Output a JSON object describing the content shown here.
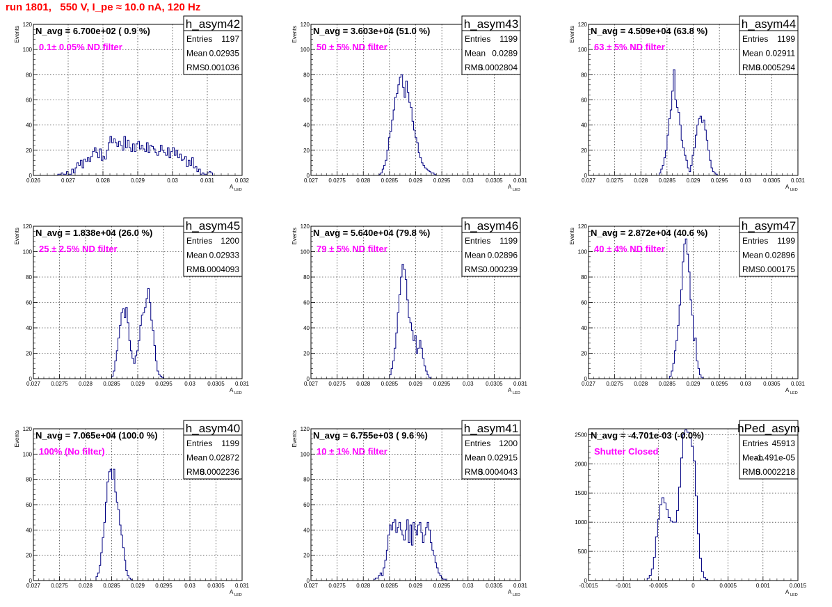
{
  "page": {
    "title": "run 1801,   550 V, I_pe ≈ 10.0 nA, 120 Hz"
  },
  "style": {
    "hist_color": "#000080",
    "annotation_color": "#ff00ff",
    "title_color": "#ff0000",
    "grid": "dotted"
  },
  "stats_labels": {
    "entries": "Entries",
    "mean": "Mean",
    "rms": "RMS"
  },
  "chart_data": [
    {
      "type": "histogram",
      "name": "h_asym42",
      "navg": "N_avg = 6.700e+02 ( 0.9 %)",
      "label": "0.1± 0.05% ND filter",
      "stats": {
        "entries": "1197",
        "mean": "0.02935",
        "rms": "0.001036"
      },
      "xlabel": "A",
      "xlabel_sub": "LED",
      "ylabel": "Events",
      "xlim": [
        0.026,
        0.032
      ],
      "ylim": [
        0,
        120
      ],
      "xticks": [
        0.026,
        0.027,
        0.028,
        0.029,
        0.03,
        0.031,
        0.032
      ],
      "xticklabels": [
        "0.026",
        "0.027",
        "0.028",
        "0.029",
        "0.03",
        "0.031",
        "0.032"
      ],
      "yticks": [
        0,
        20,
        40,
        60,
        80,
        100,
        120
      ],
      "bins": {
        "start": 0.0267,
        "width": 5e-05,
        "counts": [
          1,
          1,
          2,
          1,
          1,
          3,
          1,
          1,
          5,
          2,
          6,
          10,
          8,
          12,
          6,
          13,
          11,
          14,
          11,
          15,
          19,
          22,
          18,
          14,
          21,
          12,
          15,
          13,
          20,
          26,
          31,
          26,
          29,
          26,
          23,
          27,
          24,
          20,
          31,
          22,
          28,
          22,
          19,
          25,
          19,
          25,
          27,
          21,
          24,
          21,
          19,
          26,
          18,
          24,
          23,
          21,
          18,
          16,
          19,
          24,
          20,
          18,
          16,
          22,
          14,
          19,
          22,
          16,
          20,
          14,
          17,
          12,
          13,
          15,
          7,
          12,
          8,
          14,
          6,
          7,
          3,
          5,
          1,
          2,
          1,
          1,
          2,
          3,
          2
        ]
      }
    },
    {
      "type": "histogram",
      "name": "h_asym43",
      "navg": "N_avg = 3.603e+04 (51.0 %)",
      "label": "50 ± 5% ND filter",
      "stats": {
        "entries": "1199",
        "mean": "0.0289",
        "rms": "0.0002804"
      },
      "xlabel": "A",
      "xlabel_sub": "LED",
      "ylabel": "Events",
      "xlim": [
        0.027,
        0.031
      ],
      "ylim": [
        0,
        120
      ],
      "xticks": [
        0.027,
        0.0275,
        0.028,
        0.0285,
        0.029,
        0.0295,
        0.03,
        0.0305,
        0.031
      ],
      "xticklabels": [
        "0.027",
        "0.0275",
        "0.028",
        "0.0285",
        "0.029",
        "0.0295",
        "0.03",
        "0.0305",
        "0.031"
      ],
      "yticks": [
        0,
        20,
        40,
        60,
        80,
        100,
        120
      ],
      "bins": {
        "start": 0.0283,
        "width": 3e-05,
        "counts": [
          1,
          2,
          5,
          8,
          12,
          20,
          30,
          35,
          44,
          52,
          62,
          65,
          72,
          78,
          80,
          70,
          62,
          75,
          66,
          58,
          54,
          43,
          36,
          30,
          26,
          18,
          14,
          10,
          8,
          6,
          5,
          4,
          3,
          2,
          2,
          1
        ]
      }
    },
    {
      "type": "histogram",
      "name": "h_asym44",
      "navg": "N_avg = 4.509e+04 (63.8 %)",
      "label": "63 ± 5% ND filter",
      "stats": {
        "entries": "1199",
        "mean": "0.02911",
        "rms": "0.0005294"
      },
      "xlabel": "A",
      "xlabel_sub": "LED",
      "ylabel": "Events",
      "xlim": [
        0.027,
        0.031
      ],
      "ylim": [
        0,
        120
      ],
      "xticks": [
        0.027,
        0.0275,
        0.028,
        0.0285,
        0.029,
        0.0295,
        0.03,
        0.0305,
        0.031
      ],
      "xticklabels": [
        "0.027",
        "0.0275",
        "0.028",
        "0.0285",
        "0.029",
        "0.0295",
        "0.03",
        "0.0305",
        "0.031"
      ],
      "yticks": [
        0,
        20,
        40,
        60,
        80,
        100,
        120
      ],
      "bins": {
        "start": 0.02835,
        "width": 3e-05,
        "counts": [
          2,
          5,
          8,
          14,
          20,
          32,
          45,
          52,
          67,
          84,
          60,
          54,
          50,
          40,
          28,
          22,
          16,
          12,
          6,
          3,
          8,
          16,
          22,
          32,
          40,
          45,
          47,
          42,
          44,
          36,
          28,
          20,
          12,
          6,
          3,
          2,
          1
        ]
      }
    },
    {
      "type": "histogram",
      "name": "h_asym45",
      "navg": "N_avg = 1.838e+04 (26.0 %)",
      "label": "25 ± 2.5% ND filter",
      "stats": {
        "entries": "1200",
        "mean": "0.02933",
        "rms": "0.0004093"
      },
      "xlabel": "A",
      "xlabel_sub": "LED",
      "ylabel": "Events",
      "xlim": [
        0.027,
        0.031
      ],
      "ylim": [
        0,
        120
      ],
      "xticks": [
        0.027,
        0.0275,
        0.028,
        0.0285,
        0.029,
        0.0295,
        0.03,
        0.0305,
        0.031
      ],
      "xticklabels": [
        "0.027",
        "0.0275",
        "0.028",
        "0.0285",
        "0.029",
        "0.0295",
        "0.03",
        "0.0305",
        "0.031"
      ],
      "yticks": [
        0,
        20,
        40,
        60,
        80,
        100,
        120
      ],
      "bins": {
        "start": 0.0285,
        "width": 3e-05,
        "counts": [
          2,
          6,
          14,
          22,
          32,
          42,
          52,
          55,
          48,
          56,
          44,
          30,
          22,
          16,
          12,
          18,
          22,
          30,
          42,
          50,
          52,
          56,
          63,
          71,
          60,
          46,
          38,
          26,
          14,
          6,
          3,
          2,
          1
        ]
      }
    },
    {
      "type": "histogram",
      "name": "h_asym46",
      "navg": "N_avg = 5.640e+04 (79.8 %)",
      "label": "79 ± 5% ND filter",
      "stats": {
        "entries": "1199",
        "mean": "0.02896",
        "rms": "0.000239"
      },
      "xlabel": "A",
      "xlabel_sub": "LED",
      "ylabel": "Events",
      "xlim": [
        0.027,
        0.031
      ],
      "ylim": [
        0,
        120
      ],
      "xticks": [
        0.027,
        0.0275,
        0.028,
        0.0285,
        0.029,
        0.0295,
        0.03,
        0.0305,
        0.031
      ],
      "xticklabels": [
        "0.027",
        "0.0275",
        "0.028",
        "0.0285",
        "0.029",
        "0.0295",
        "0.03",
        "0.0305",
        "0.031"
      ],
      "yticks": [
        0,
        20,
        40,
        60,
        80,
        100,
        120
      ],
      "bins": {
        "start": 0.0285,
        "width": 3e-05,
        "counts": [
          3,
          8,
          14,
          24,
          36,
          52,
          66,
          80,
          90,
          86,
          78,
          62,
          48,
          44,
          38,
          30,
          34,
          20,
          24,
          30,
          24,
          16,
          10,
          6,
          3,
          1
        ]
      }
    },
    {
      "type": "histogram",
      "name": "h_asym47",
      "navg": "N_avg = 2.872e+04 (40.6 %)",
      "label": "40 ± 4% ND filter",
      "stats": {
        "entries": "1199",
        "mean": "0.02896",
        "rms": "0.000175"
      },
      "xlabel": "A",
      "xlabel_sub": "LED",
      "ylabel": "Events",
      "xlim": [
        0.027,
        0.031
      ],
      "ylim": [
        0,
        120
      ],
      "xticks": [
        0.027,
        0.0275,
        0.028,
        0.0285,
        0.029,
        0.0295,
        0.03,
        0.0305,
        0.031
      ],
      "xticklabels": [
        "0.027",
        "0.0275",
        "0.028",
        "0.0285",
        "0.029",
        "0.0295",
        "0.03",
        "0.0305",
        "0.031"
      ],
      "yticks": [
        0,
        20,
        40,
        60,
        80,
        100,
        120
      ],
      "bins": {
        "start": 0.02855,
        "width": 3e-05,
        "counts": [
          2,
          6,
          12,
          22,
          30,
          42,
          58,
          70,
          92,
          106,
          110,
          98,
          84,
          62,
          50,
          30,
          32,
          14,
          8,
          3,
          1
        ]
      }
    },
    {
      "type": "histogram",
      "name": "h_asym40",
      "navg": "N_avg = 7.065e+04 (100.0 %)",
      "label": "100% (No filter)",
      "stats": {
        "entries": "1199",
        "mean": "0.02872",
        "rms": "0.0002236"
      },
      "xlabel": "A",
      "xlabel_sub": "LED",
      "ylabel": "Events",
      "xlim": [
        0.027,
        0.031
      ],
      "ylim": [
        0,
        120
      ],
      "xticks": [
        0.027,
        0.0275,
        0.028,
        0.0285,
        0.029,
        0.0295,
        0.03,
        0.0305,
        0.031
      ],
      "xticklabels": [
        "0.027",
        "0.0275",
        "0.028",
        "0.0285",
        "0.029",
        "0.0295",
        "0.03",
        "0.0305",
        "0.031"
      ],
      "yticks": [
        0,
        20,
        40,
        60,
        80,
        100,
        120
      ],
      "bins": {
        "start": 0.0282,
        "width": 3e-05,
        "counts": [
          3,
          6,
          12,
          22,
          34,
          46,
          62,
          78,
          86,
          88,
          80,
          88,
          70,
          62,
          56,
          44,
          36,
          26,
          16,
          8,
          4,
          2,
          1
        ]
      }
    },
    {
      "type": "histogram",
      "name": "h_asym41",
      "navg": "N_avg = 6.755e+03 ( 9.6 %)",
      "label": "10 ± 1% ND filter",
      "stats": {
        "entries": "1200",
        "mean": "0.02915",
        "rms": "0.0004043"
      },
      "xlabel": "A",
      "xlabel_sub": "LED",
      "ylabel": "Events",
      "xlim": [
        0.027,
        0.031
      ],
      "ylim": [
        0,
        120
      ],
      "xticks": [
        0.027,
        0.0275,
        0.028,
        0.0285,
        0.029,
        0.0295,
        0.03,
        0.0305,
        0.031
      ],
      "xticklabels": [
        "0.027",
        "0.0275",
        "0.028",
        "0.0285",
        "0.029",
        "0.0295",
        "0.03",
        "0.0305",
        "0.031"
      ],
      "yticks": [
        0,
        20,
        40,
        60,
        80,
        100,
        120
      ],
      "bins": {
        "start": 0.0282,
        "width": 3e-05,
        "counts": [
          1,
          2,
          2,
          4,
          6,
          4,
          10,
          16,
          24,
          36,
          44,
          40,
          46,
          48,
          38,
          42,
          46,
          40,
          36,
          32,
          40,
          48,
          30,
          44,
          28,
          46,
          40,
          36,
          44,
          46,
          38,
          30,
          36,
          42,
          46,
          40,
          30,
          24,
          20,
          14,
          10,
          6,
          4,
          2,
          1,
          1
        ]
      }
    },
    {
      "type": "histogram",
      "name": "hPed_asym",
      "navg": "N_avg = -4.701e-03 (-0.0%)",
      "label": "Shutter Closed",
      "stats": {
        "entries": "45913",
        "mean": "-1.491e-05",
        "rms": "0.0002218"
      },
      "xlabel": "A",
      "xlabel_sub": "LED",
      "ylabel": "",
      "xlim": [
        -0.0015,
        0.0015
      ],
      "ylim": [
        0,
        2600
      ],
      "xticks": [
        -0.0015,
        -0.001,
        -0.0005,
        0,
        0.0005,
        0.001,
        0.0015
      ],
      "xticklabels": [
        "-0.0015",
        "-0.001",
        "-0.0005",
        "0",
        "0.0005",
        "0.001",
        "0.0015"
      ],
      "yticks": [
        0,
        500,
        1000,
        1500,
        2000,
        2500
      ],
      "bins": {
        "start": -0.00066,
        "width": 3e-05,
        "counts": [
          40,
          90,
          200,
          400,
          750,
          1050,
          1300,
          1420,
          1330,
          1220,
          1080,
          1020,
          1000,
          1000,
          1200,
          1600,
          2100,
          2500,
          2580,
          2540,
          2450,
          2300,
          2050,
          1450,
          800,
          380,
          150,
          50,
          20
        ]
      }
    }
  ]
}
